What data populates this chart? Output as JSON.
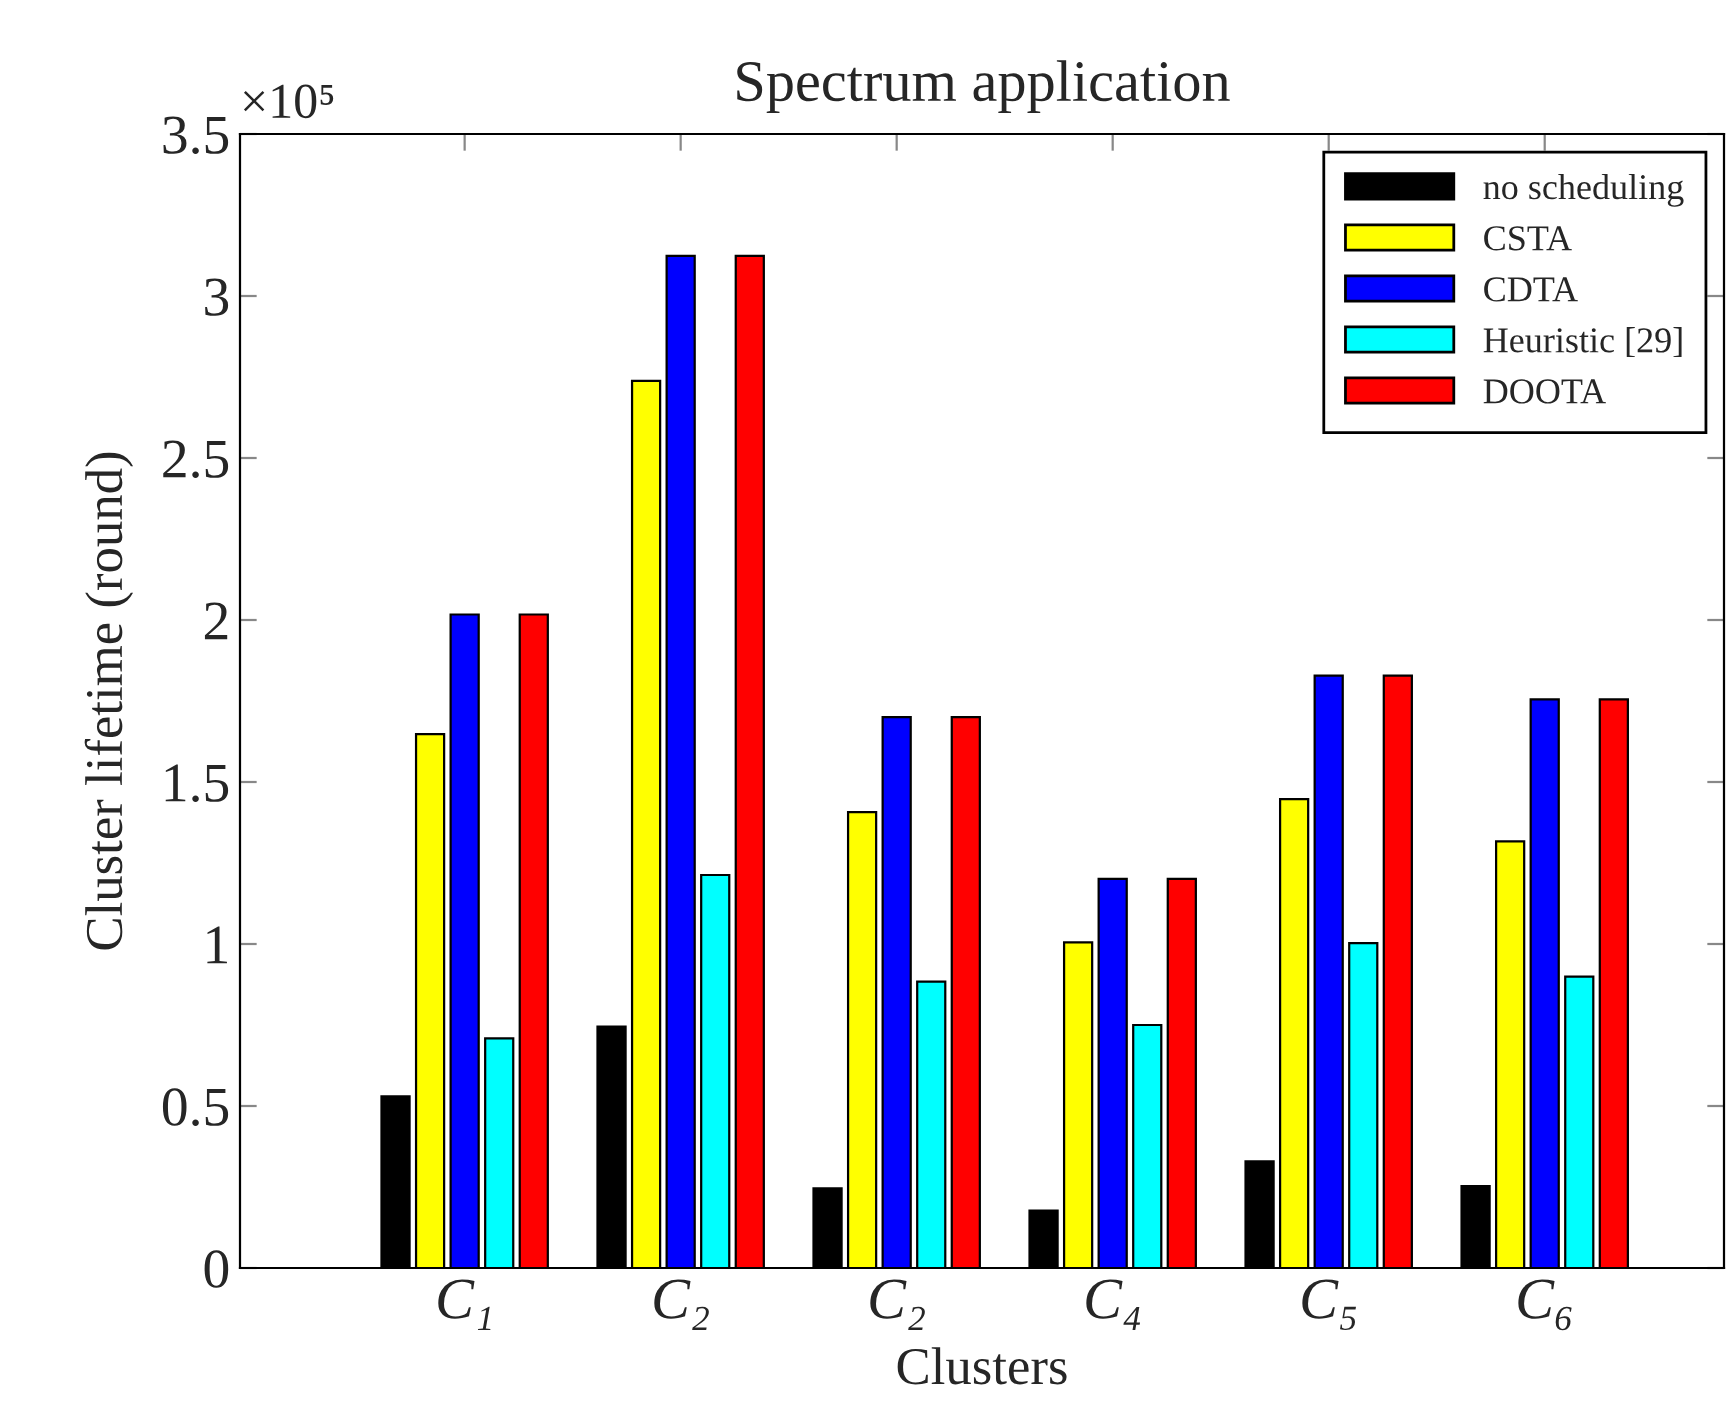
{
  "chart_data": {
    "type": "bar",
    "title": "Spectrum application",
    "xlabel": "Clusters",
    "ylabel": "Cluster lifetime (round)",
    "categories": [
      "C₁",
      "C₂",
      "C₂",
      "C₄",
      "C₅",
      "C₆"
    ],
    "series": [
      {
        "name": "no scheduling",
        "color": "#000000",
        "values": [
          0.53,
          0.745,
          0.246,
          0.177,
          0.329,
          0.253
        ]
      },
      {
        "name": "CSTA",
        "color": "#ffff00",
        "values": [
          1.648,
          2.738,
          1.407,
          1.005,
          1.447,
          1.317
        ]
      },
      {
        "name": "CDTA",
        "color": "#0000ff",
        "values": [
          2.017,
          3.124,
          1.7,
          1.201,
          1.828,
          1.755
        ]
      },
      {
        "name": "Heuristic [29]",
        "color": "#00ffff",
        "values": [
          0.709,
          1.213,
          0.884,
          0.75,
          1.003,
          0.899
        ]
      },
      {
        "name": "DOOTA",
        "color": "#ff0000",
        "values": [
          2.017,
          3.124,
          1.7,
          1.201,
          1.828,
          1.755
        ]
      }
    ],
    "ylim": [
      0,
      3.5
    ],
    "yticks": [
      0,
      0.5,
      1,
      1.5,
      2,
      2.5,
      3,
      3.5
    ],
    "annotations": [
      "×10⁵"
    ],
    "legend": "top right",
    "grid": false
  }
}
